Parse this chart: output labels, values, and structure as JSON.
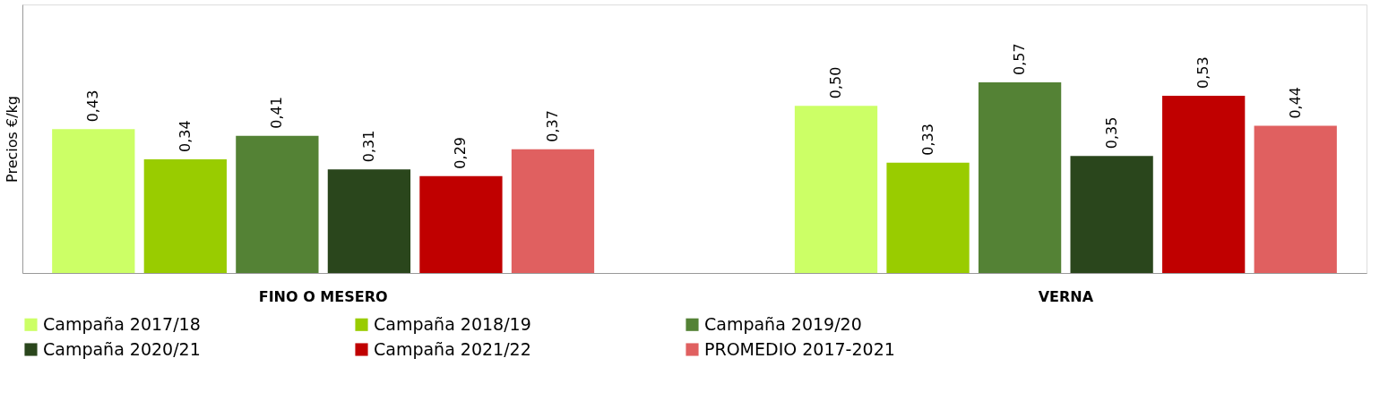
{
  "chart_data": {
    "type": "bar",
    "ylabel": "Precios €/kg",
    "categories": [
      "FINO O MESERO",
      "VERNA"
    ],
    "series": [
      {
        "name": "Campaña 2017/18",
        "color": "#ccff66",
        "values": [
          0.43,
          0.5
        ],
        "value_labels": [
          "0,43",
          "0,50"
        ]
      },
      {
        "name": "Campaña 2018/19",
        "color": "#99cc00",
        "values": [
          0.34,
          0.33
        ],
        "value_labels": [
          "0,34",
          "0,33"
        ]
      },
      {
        "name": "Campaña 2019/20",
        "color": "#548235",
        "values": [
          0.41,
          0.57
        ],
        "value_labels": [
          "0,41",
          "0,57"
        ]
      },
      {
        "name": "Campaña 2020/21",
        "color": "#2a461c",
        "values": [
          0.31,
          0.35
        ],
        "value_labels": [
          "0,31",
          "0,35"
        ]
      },
      {
        "name": "Campaña 2021/22",
        "color": "#c00000",
        "values": [
          0.29,
          0.53
        ],
        "value_labels": [
          "0,29",
          "0,53"
        ]
      },
      {
        "name": "PROMEDIO 2017-2021",
        "color": "#e06060",
        "values": [
          0.37,
          0.44
        ],
        "value_labels": [
          "0,37",
          "0,44"
        ]
      }
    ],
    "tick_labels": "x",
    "grid": false,
    "legend": "bottom"
  }
}
